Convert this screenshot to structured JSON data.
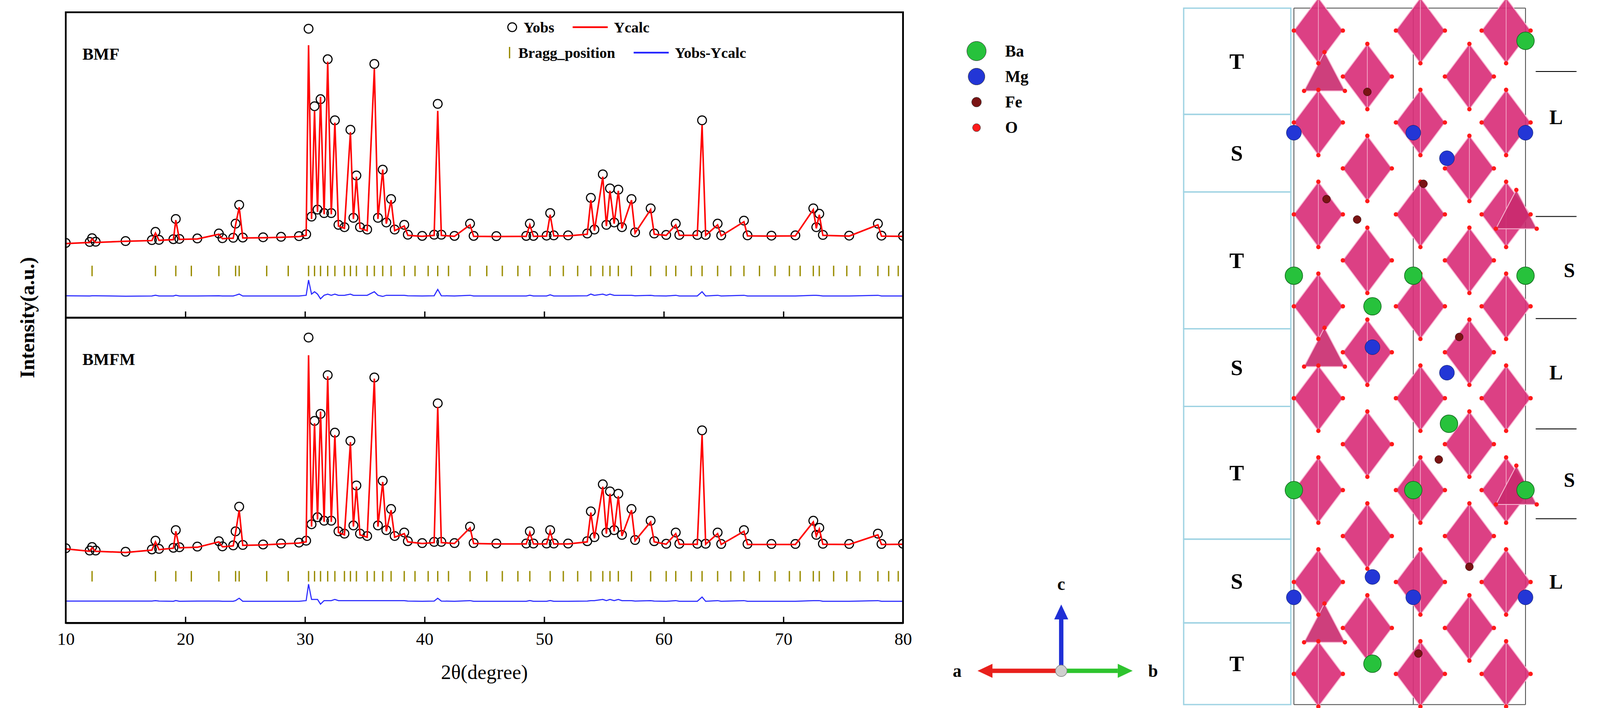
{
  "chart_data": [
    {
      "type": "scatter",
      "title": "BMF",
      "ylabel": "Intensity(a.u.)",
      "x": [
        10.0,
        12.0,
        12.2,
        12.5,
        15.0,
        17.2,
        17.5,
        17.8,
        19.0,
        19.2,
        19.5,
        21.0,
        22.8,
        23.1,
        24.0,
        24.2,
        24.5,
        24.8,
        26.5,
        28.0,
        29.5,
        30.1,
        30.3,
        30.55,
        30.8,
        31.05,
        31.3,
        31.6,
        31.9,
        32.2,
        32.5,
        32.8,
        33.3,
        33.8,
        34.05,
        34.3,
        34.6,
        35.2,
        35.8,
        36.1,
        36.5,
        36.8,
        37.2,
        37.5,
        38.3,
        38.6,
        39.8,
        40.8,
        41.1,
        41.4,
        42.5,
        43.8,
        44.1,
        46.0,
        48.5,
        48.8,
        49.1,
        50.2,
        50.5,
        50.8,
        52.0,
        53.6,
        53.9,
        54.2,
        54.9,
        55.2,
        55.5,
        55.85,
        56.2,
        56.5,
        57.3,
        57.6,
        58.9,
        59.2,
        60.2,
        61.0,
        61.3,
        62.8,
        63.2,
        63.5,
        64.5,
        64.8,
        66.7,
        67.0,
        69.0,
        71.0,
        72.5,
        72.75,
        73.0,
        73.3,
        75.5,
        77.9,
        78.2,
        80.0
      ],
      "xlim": [
        10,
        80
      ],
      "xticks": [
        10,
        20,
        30,
        40,
        50,
        60,
        70,
        80
      ],
      "ylim": [
        -30,
        100
      ],
      "yticks": [],
      "tick_labels": false,
      "legend": "upper right",
      "series": [
        {
          "name": "Yobs",
          "type": "scatter",
          "marker": "circle",
          "color": "#000000",
          "values": [
            1.8,
            2.2,
            3.8,
            2.3,
            2.6,
            3.0,
            6.5,
            3.1,
            3.4,
            12.0,
            3.5,
            3.7,
            5.8,
            3.8,
            4.0,
            10.0,
            18.0,
            4.1,
            4.2,
            4.4,
            4.7,
            5.5,
            93.0,
            13.0,
            60.0,
            16.0,
            63.0,
            14.5,
            80.0,
            14.5,
            54.0,
            9.5,
            8.5,
            50.0,
            12.5,
            30.5,
            8.5,
            7.5,
            78.0,
            12.5,
            33.0,
            10.5,
            20.5,
            7.5,
            9.5,
            5.3,
            4.8,
            5.3,
            61.0,
            5.3,
            4.8,
            10.0,
            4.8,
            4.7,
            4.8,
            10.0,
            4.8,
            4.9,
            14.5,
            5.0,
            5.0,
            5.8,
            21.0,
            7.5,
            31.0,
            9.5,
            25.0,
            10.5,
            24.5,
            8.5,
            20.5,
            6.3,
            16.5,
            5.8,
            5.2,
            10.0,
            5.2,
            5.2,
            54.0,
            5.2,
            10.0,
            5.0,
            11.3,
            5.0,
            4.9,
            5.0,
            16.5,
            8.5,
            14.2,
            5.2,
            4.9,
            10.0,
            4.9,
            4.8
          ]
        },
        {
          "name": "Ycalc",
          "type": "line",
          "line_style": "solid",
          "color": "#ff0000",
          "values": [
            1.5,
            2.0,
            3.5,
            2.0,
            2.5,
            2.8,
            6.0,
            2.9,
            3.2,
            11.5,
            3.3,
            3.5,
            5.5,
            3.6,
            3.8,
            9.5,
            17.0,
            3.9,
            4.0,
            4.2,
            4.5,
            5.0,
            86.0,
            12.0,
            58.0,
            15.0,
            64.0,
            14.0,
            79.0,
            14.0,
            53.0,
            9.0,
            8.0,
            49.0,
            12.0,
            30.0,
            8.0,
            7.0,
            76.0,
            12.0,
            33.0,
            10.0,
            20.0,
            7.0,
            9.0,
            5.0,
            4.6,
            5.0,
            58.0,
            5.0,
            4.6,
            9.5,
            4.6,
            4.5,
            4.6,
            9.5,
            4.6,
            4.7,
            13.8,
            4.8,
            4.8,
            5.5,
            20.0,
            7.0,
            30.0,
            9.0,
            24.0,
            10.0,
            24.0,
            8.0,
            20.0,
            6.0,
            16.0,
            5.5,
            5.0,
            9.5,
            5.0,
            5.0,
            52.0,
            5.0,
            9.5,
            4.8,
            10.8,
            4.8,
            4.7,
            4.8,
            16.0,
            8.0,
            13.8,
            5.0,
            4.7,
            9.5,
            4.7,
            4.6
          ]
        },
        {
          "name": "Bragg_position",
          "type": "tick",
          "marker": "vline",
          "color": "#9a8c00",
          "x": [
            12.2,
            17.5,
            19.2,
            20.5,
            22.8,
            24.2,
            24.5,
            26.8,
            28.6,
            30.3,
            30.8,
            31.3,
            31.9,
            32.5,
            33.3,
            33.8,
            34.3,
            35.2,
            35.8,
            36.5,
            37.2,
            38.3,
            39.2,
            40.3,
            41.1,
            42.0,
            43.8,
            45.2,
            46.5,
            47.8,
            48.8,
            50.5,
            51.6,
            52.8,
            53.9,
            54.9,
            55.5,
            56.2,
            57.3,
            58.9,
            60.2,
            61.0,
            62.3,
            63.2,
            64.5,
            65.6,
            66.7,
            68.0,
            69.3,
            70.5,
            71.4,
            72.5,
            73.0,
            74.2,
            75.3,
            76.4,
            77.9,
            78.8,
            79.6
          ]
        },
        {
          "name": "Yobs-Ycalc",
          "type": "line",
          "line_style": "solid",
          "color": "#2a2aff",
          "values": [
            -20.7,
            -20.8,
            -20.7,
            -20.7,
            -20.9,
            -20.8,
            -20.5,
            -20.8,
            -20.8,
            -20.5,
            -20.8,
            -20.8,
            -20.7,
            -20.8,
            -20.8,
            -20.5,
            -20.0,
            -20.8,
            -20.8,
            -20.8,
            -20.8,
            -20.5,
            -14.0,
            -20.0,
            -19.0,
            -20.0,
            -22.0,
            -20.5,
            -20.0,
            -20.5,
            -20.0,
            -20.5,
            -20.5,
            -20.0,
            -20.5,
            -20.5,
            -20.5,
            -20.5,
            -19.0,
            -20.5,
            -21.0,
            -20.5,
            -20.5,
            -20.5,
            -20.5,
            -20.7,
            -20.8,
            -20.7,
            -18.0,
            -20.7,
            -20.8,
            -20.5,
            -20.8,
            -20.8,
            -20.8,
            -20.5,
            -20.8,
            -20.8,
            -20.3,
            -20.8,
            -20.8,
            -20.7,
            -20.0,
            -20.5,
            -20.0,
            -20.5,
            -20.0,
            -20.5,
            -20.5,
            -20.5,
            -20.5,
            -20.7,
            -20.5,
            -20.7,
            -20.8,
            -20.5,
            -20.8,
            -20.8,
            -19.0,
            -20.8,
            -20.5,
            -20.8,
            -20.5,
            -20.8,
            -20.8,
            -20.8,
            -20.5,
            -20.5,
            -20.6,
            -20.8,
            -20.8,
            -20.5,
            -20.8,
            -20.8
          ]
        }
      ]
    },
    {
      "type": "scatter",
      "title": "BMFM",
      "xlabel": "2θ(degree)",
      "x": [
        10.0,
        12.0,
        12.2,
        12.5,
        15.0,
        17.2,
        17.5,
        17.8,
        19.0,
        19.2,
        19.5,
        21.0,
        22.8,
        23.1,
        24.0,
        24.2,
        24.5,
        24.8,
        26.5,
        28.0,
        29.5,
        30.1,
        30.3,
        30.55,
        30.8,
        31.05,
        31.3,
        31.6,
        31.9,
        32.2,
        32.5,
        32.8,
        33.3,
        33.8,
        34.05,
        34.3,
        34.6,
        35.2,
        35.8,
        36.1,
        36.5,
        36.8,
        37.2,
        37.5,
        38.3,
        38.6,
        39.8,
        40.8,
        41.1,
        41.4,
        42.5,
        43.8,
        44.1,
        46.0,
        48.5,
        48.8,
        49.1,
        50.2,
        50.5,
        50.8,
        52.0,
        53.6,
        53.9,
        54.2,
        54.9,
        55.2,
        55.5,
        55.85,
        56.2,
        56.5,
        57.3,
        57.6,
        58.9,
        59.2,
        60.2,
        61.0,
        61.3,
        62.8,
        63.2,
        63.5,
        64.5,
        64.8,
        66.7,
        67.0,
        69.0,
        71.0,
        72.5,
        72.75,
        73.0,
        73.3,
        75.5,
        77.9,
        78.2,
        80.0
      ],
      "xlim": [
        10,
        80
      ],
      "xticks": [
        10,
        20,
        30,
        40,
        50,
        60,
        70,
        80
      ],
      "ylim": [
        -30,
        100
      ],
      "yticks": [],
      "tick_labels": "x",
      "series": [
        {
          "type": "scatter",
          "marker": "circle",
          "color": "#000000",
          "values": [
            1.8,
            0.8,
            2.3,
            0.8,
            0.3,
            1.3,
            5.0,
            1.5,
            2.0,
            9.5,
            2.2,
            2.5,
            4.8,
            2.6,
            3.0,
            9.0,
            19.5,
            3.2,
            3.4,
            3.8,
            4.2,
            5.0,
            91.5,
            12.0,
            56.0,
            15.0,
            59.0,
            13.5,
            75.5,
            13.5,
            51.0,
            9.0,
            8.0,
            47.5,
            11.5,
            28.5,
            8.0,
            7.0,
            74.5,
            11.5,
            30.5,
            9.5,
            18.5,
            7.0,
            8.5,
            4.8,
            4.0,
            4.5,
            63.5,
            4.5,
            4.0,
            11.0,
            4.0,
            3.8,
            3.8,
            9.0,
            3.8,
            3.8,
            9.5,
            3.8,
            3.8,
            4.8,
            17.5,
            6.5,
            29.0,
            8.5,
            26.0,
            9.5,
            25.0,
            7.5,
            18.5,
            5.3,
            13.5,
            4.8,
            3.7,
            8.5,
            3.7,
            3.7,
            52.0,
            3.7,
            8.5,
            3.6,
            9.5,
            3.6,
            3.6,
            3.6,
            13.5,
            7.5,
            10.5,
            3.7,
            3.6,
            8.0,
            3.6,
            3.7
          ]
        },
        {
          "type": "line",
          "line_style": "solid",
          "color": "#ff0000",
          "values": [
            1.5,
            0.5,
            2.0,
            0.5,
            0.0,
            1.0,
            4.5,
            1.2,
            1.8,
            9.0,
            2.0,
            2.2,
            4.5,
            2.4,
            2.8,
            8.5,
            18.0,
            3.0,
            3.2,
            3.6,
            4.0,
            4.5,
            84.0,
            11.0,
            55.0,
            14.0,
            60.0,
            13.0,
            75.0,
            13.0,
            50.0,
            8.5,
            7.5,
            47.0,
            11.0,
            28.0,
            7.5,
            6.5,
            74.0,
            11.0,
            30.0,
            9.0,
            18.0,
            6.5,
            8.0,
            4.5,
            3.8,
            4.2,
            62.0,
            4.2,
            3.8,
            10.5,
            3.8,
            3.6,
            3.6,
            8.5,
            3.6,
            3.6,
            9.0,
            3.6,
            3.6,
            4.5,
            17.0,
            6.0,
            28.0,
            8.0,
            25.0,
            9.0,
            24.0,
            7.0,
            18.0,
            5.0,
            13.0,
            4.5,
            3.5,
            8.0,
            3.5,
            3.5,
            50.0,
            3.5,
            8.0,
            3.4,
            9.0,
            3.4,
            3.4,
            3.4,
            13.0,
            7.0,
            10.0,
            3.5,
            3.4,
            7.5,
            3.4,
            3.5
          ]
        },
        {
          "type": "tick",
          "marker": "vline",
          "color": "#9a8c00",
          "x": [
            12.2,
            17.5,
            19.2,
            20.5,
            22.8,
            24.2,
            24.5,
            26.8,
            28.6,
            30.3,
            30.8,
            31.3,
            31.9,
            32.5,
            33.3,
            33.8,
            34.3,
            35.2,
            35.8,
            36.5,
            37.2,
            38.3,
            39.2,
            40.3,
            41.1,
            42.0,
            43.8,
            45.2,
            46.5,
            47.8,
            48.8,
            50.5,
            51.6,
            52.8,
            53.9,
            54.9,
            55.5,
            56.2,
            57.3,
            58.9,
            60.2,
            61.0,
            62.3,
            63.2,
            64.5,
            65.6,
            66.7,
            68.0,
            69.3,
            70.5,
            71.4,
            72.5,
            73.0,
            74.2,
            75.3,
            76.4,
            77.9,
            78.8,
            79.6
          ]
        },
        {
          "type": "line",
          "line_style": "solid",
          "color": "#2a2aff",
          "values": [
            -20.7,
            -20.7,
            -20.7,
            -20.7,
            -20.7,
            -20.7,
            -20.5,
            -20.7,
            -20.8,
            -20.5,
            -20.8,
            -20.7,
            -20.7,
            -20.8,
            -20.8,
            -20.5,
            -19.5,
            -20.8,
            -20.8,
            -20.8,
            -20.8,
            -20.5,
            -13.5,
            -20.0,
            -20.0,
            -20.0,
            -22.0,
            -20.5,
            -20.5,
            -20.5,
            -20.0,
            -20.5,
            -20.5,
            -20.5,
            -20.5,
            -20.5,
            -20.5,
            -20.5,
            -20.5,
            -20.5,
            -20.5,
            -20.5,
            -20.5,
            -20.5,
            -20.5,
            -20.7,
            -20.8,
            -20.7,
            -19.5,
            -20.7,
            -20.8,
            -20.5,
            -20.8,
            -20.8,
            -20.8,
            -20.5,
            -20.8,
            -20.8,
            -20.5,
            -20.8,
            -20.8,
            -20.7,
            -20.5,
            -20.5,
            -20.0,
            -20.5,
            -20.0,
            -20.5,
            -20.0,
            -20.5,
            -20.5,
            -20.7,
            -20.5,
            -20.7,
            -20.8,
            -20.5,
            -20.8,
            -20.8,
            -19.0,
            -20.8,
            -20.5,
            -20.8,
            -20.5,
            -20.8,
            -20.8,
            -20.8,
            -20.5,
            -20.5,
            -20.5,
            -20.8,
            -20.8,
            -20.5,
            -20.8,
            -20.8
          ]
        }
      ]
    }
  ],
  "diagram": {
    "legend": [
      {
        "label": "Ba",
        "color": "#27c23c"
      },
      {
        "label": "Mg",
        "color": "#2336d6"
      },
      {
        "label": "Fe",
        "color": "#7a1414"
      },
      {
        "label": "O",
        "color": "#ff1a1a"
      }
    ],
    "blocks": [
      "T",
      "S",
      "T",
      "S",
      "T",
      "S",
      "T"
    ],
    "layers": [
      "L",
      "S",
      "L",
      "S",
      "L"
    ],
    "axes": [
      "a",
      "b",
      "c"
    ]
  }
}
